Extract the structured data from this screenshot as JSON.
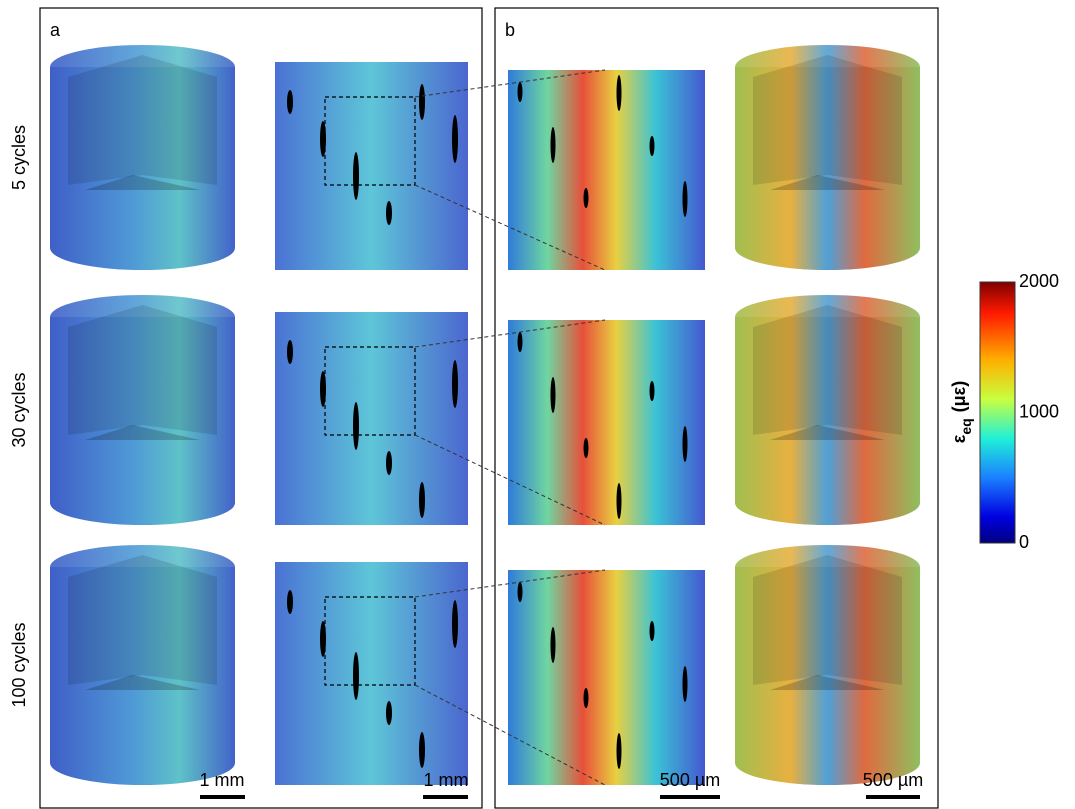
{
  "panels": {
    "a": {
      "label": "a",
      "scale_bars": [
        "1 mm",
        "1 mm"
      ]
    },
    "b": {
      "label": "b",
      "scale_bars": [
        "500 µm",
        "500 µm"
      ]
    }
  },
  "rows": [
    "5 cycles",
    "30 cycles",
    "100 cycles"
  ],
  "colorbar": {
    "symbol": "ε",
    "subscript": "eq",
    "unit": "(με)",
    "ticks": [
      2000,
      1000,
      0
    ]
  }
}
